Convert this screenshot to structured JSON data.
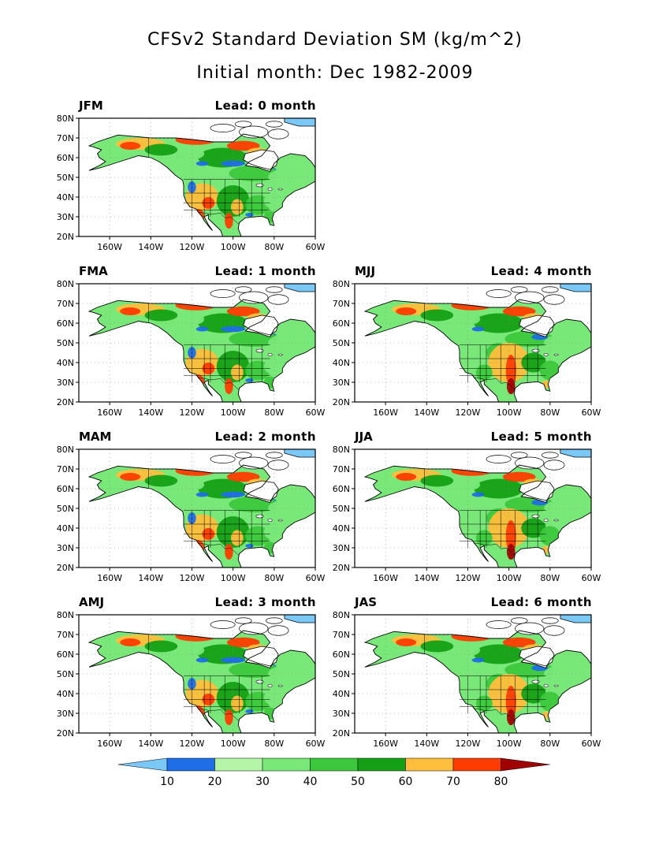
{
  "title": {
    "line1": "CFSv2 Standard Deviation SM (kg/m^2)",
    "line2": "Initial month: Dec 1982-2009"
  },
  "panels": [
    {
      "season": "JFM",
      "lead": "Lead: 0 month"
    },
    {
      "season": "FMA",
      "lead": "Lead: 1 month"
    },
    {
      "season": "MJJ",
      "lead": "Lead: 4 month"
    },
    {
      "season": "MAM",
      "lead": "Lead: 2 month"
    },
    {
      "season": "JJA",
      "lead": "Lead: 5 month"
    },
    {
      "season": "AMJ",
      "lead": "Lead: 3 month"
    },
    {
      "season": "JAS",
      "lead": "Lead: 6 month"
    }
  ],
  "axes": {
    "lat_ticks": [
      "20N",
      "30N",
      "40N",
      "50N",
      "60N",
      "70N",
      "80N"
    ],
    "lon_ticks": [
      "160W",
      "140W",
      "120W",
      "100W",
      "80W",
      "60W"
    ]
  },
  "colorbar": {
    "labels": [
      "10",
      "20",
      "30",
      "40",
      "50",
      "60",
      "70",
      "80"
    ],
    "colors": [
      "#7ac8f8",
      "#1e6ee8",
      "#b4f5a8",
      "#78e878",
      "#3cc83c",
      "#14a014",
      "#ffbe3c",
      "#ff3c00",
      "#a00000"
    ]
  }
}
